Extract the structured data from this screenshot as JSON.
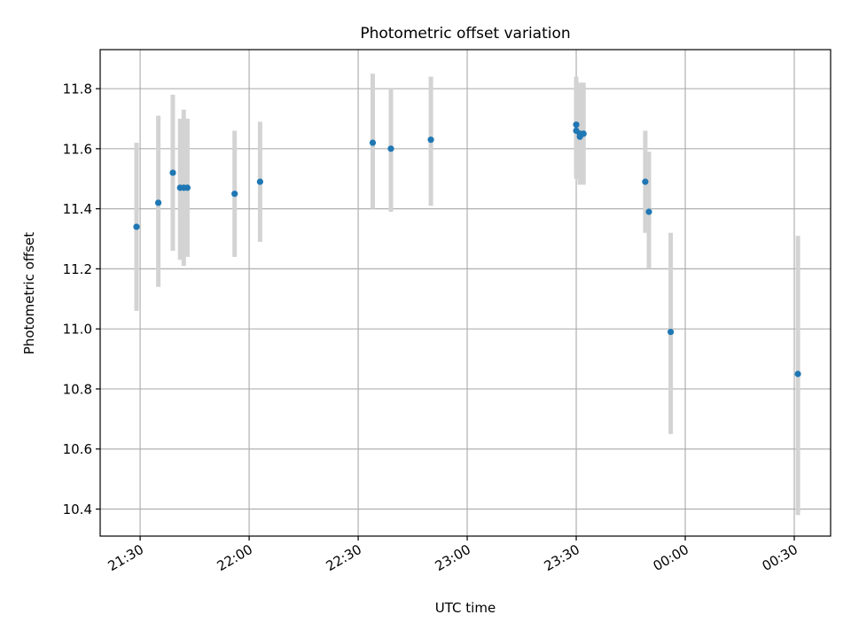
{
  "chart_data": {
    "type": "scatter",
    "title": "Photometric offset variation",
    "xlabel": "UTC time",
    "ylabel": "Photometric offset",
    "x_kind": "time",
    "xlim": [
      "21:19",
      "00:40"
    ],
    "ylim": [
      10.31,
      11.93
    ],
    "x_ticks": [
      "21:30",
      "22:00",
      "22:30",
      "23:00",
      "23:30",
      "00:00",
      "00:30"
    ],
    "y_ticks": [
      "10.4",
      "10.6",
      "10.8",
      "11.0",
      "11.2",
      "11.4",
      "11.6",
      "11.8"
    ],
    "grid": true,
    "legend": "none",
    "colors": {
      "points": "#1f77b4",
      "error_bars": "#d3d3d3"
    },
    "points": [
      {
        "x": "21:29",
        "y": 11.34,
        "ylo": 11.06,
        "yhi": 11.62
      },
      {
        "x": "21:35",
        "y": 11.42,
        "ylo": 11.14,
        "yhi": 11.71
      },
      {
        "x": "21:39",
        "y": 11.52,
        "ylo": 11.26,
        "yhi": 11.78
      },
      {
        "x": "21:41",
        "y": 11.47,
        "ylo": 11.23,
        "yhi": 11.7
      },
      {
        "x": "21:42",
        "y": 11.47,
        "ylo": 11.21,
        "yhi": 11.73
      },
      {
        "x": "21:43",
        "y": 11.47,
        "ylo": 11.24,
        "yhi": 11.7
      },
      {
        "x": "21:56",
        "y": 11.45,
        "ylo": 11.24,
        "yhi": 11.66
      },
      {
        "x": "22:03",
        "y": 11.49,
        "ylo": 11.29,
        "yhi": 11.69
      },
      {
        "x": "22:34",
        "y": 11.62,
        "ylo": 11.4,
        "yhi": 11.85
      },
      {
        "x": "22:39",
        "y": 11.6,
        "ylo": 11.39,
        "yhi": 11.8
      },
      {
        "x": "22:50",
        "y": 11.63,
        "ylo": 11.41,
        "yhi": 11.84
      },
      {
        "x": "23:30",
        "y": 11.68,
        "ylo": 11.51,
        "yhi": 11.84
      },
      {
        "x": "23:30",
        "y": 11.66,
        "ylo": 11.5,
        "yhi": 11.81
      },
      {
        "x": "23:31",
        "y": 11.65,
        "ylo": 11.48,
        "yhi": 11.82
      },
      {
        "x": "23:31",
        "y": 11.64,
        "ylo": 11.48,
        "yhi": 11.8
      },
      {
        "x": "23:32",
        "y": 11.65,
        "ylo": 11.48,
        "yhi": 11.82
      },
      {
        "x": "23:49",
        "y": 11.49,
        "ylo": 11.32,
        "yhi": 11.66
      },
      {
        "x": "23:50",
        "y": 11.39,
        "ylo": 11.2,
        "yhi": 11.59
      },
      {
        "x": "23:56",
        "y": 10.99,
        "ylo": 10.65,
        "yhi": 11.32
      },
      {
        "x": "00:31",
        "y": 10.85,
        "ylo": 10.38,
        "yhi": 11.31
      }
    ]
  }
}
